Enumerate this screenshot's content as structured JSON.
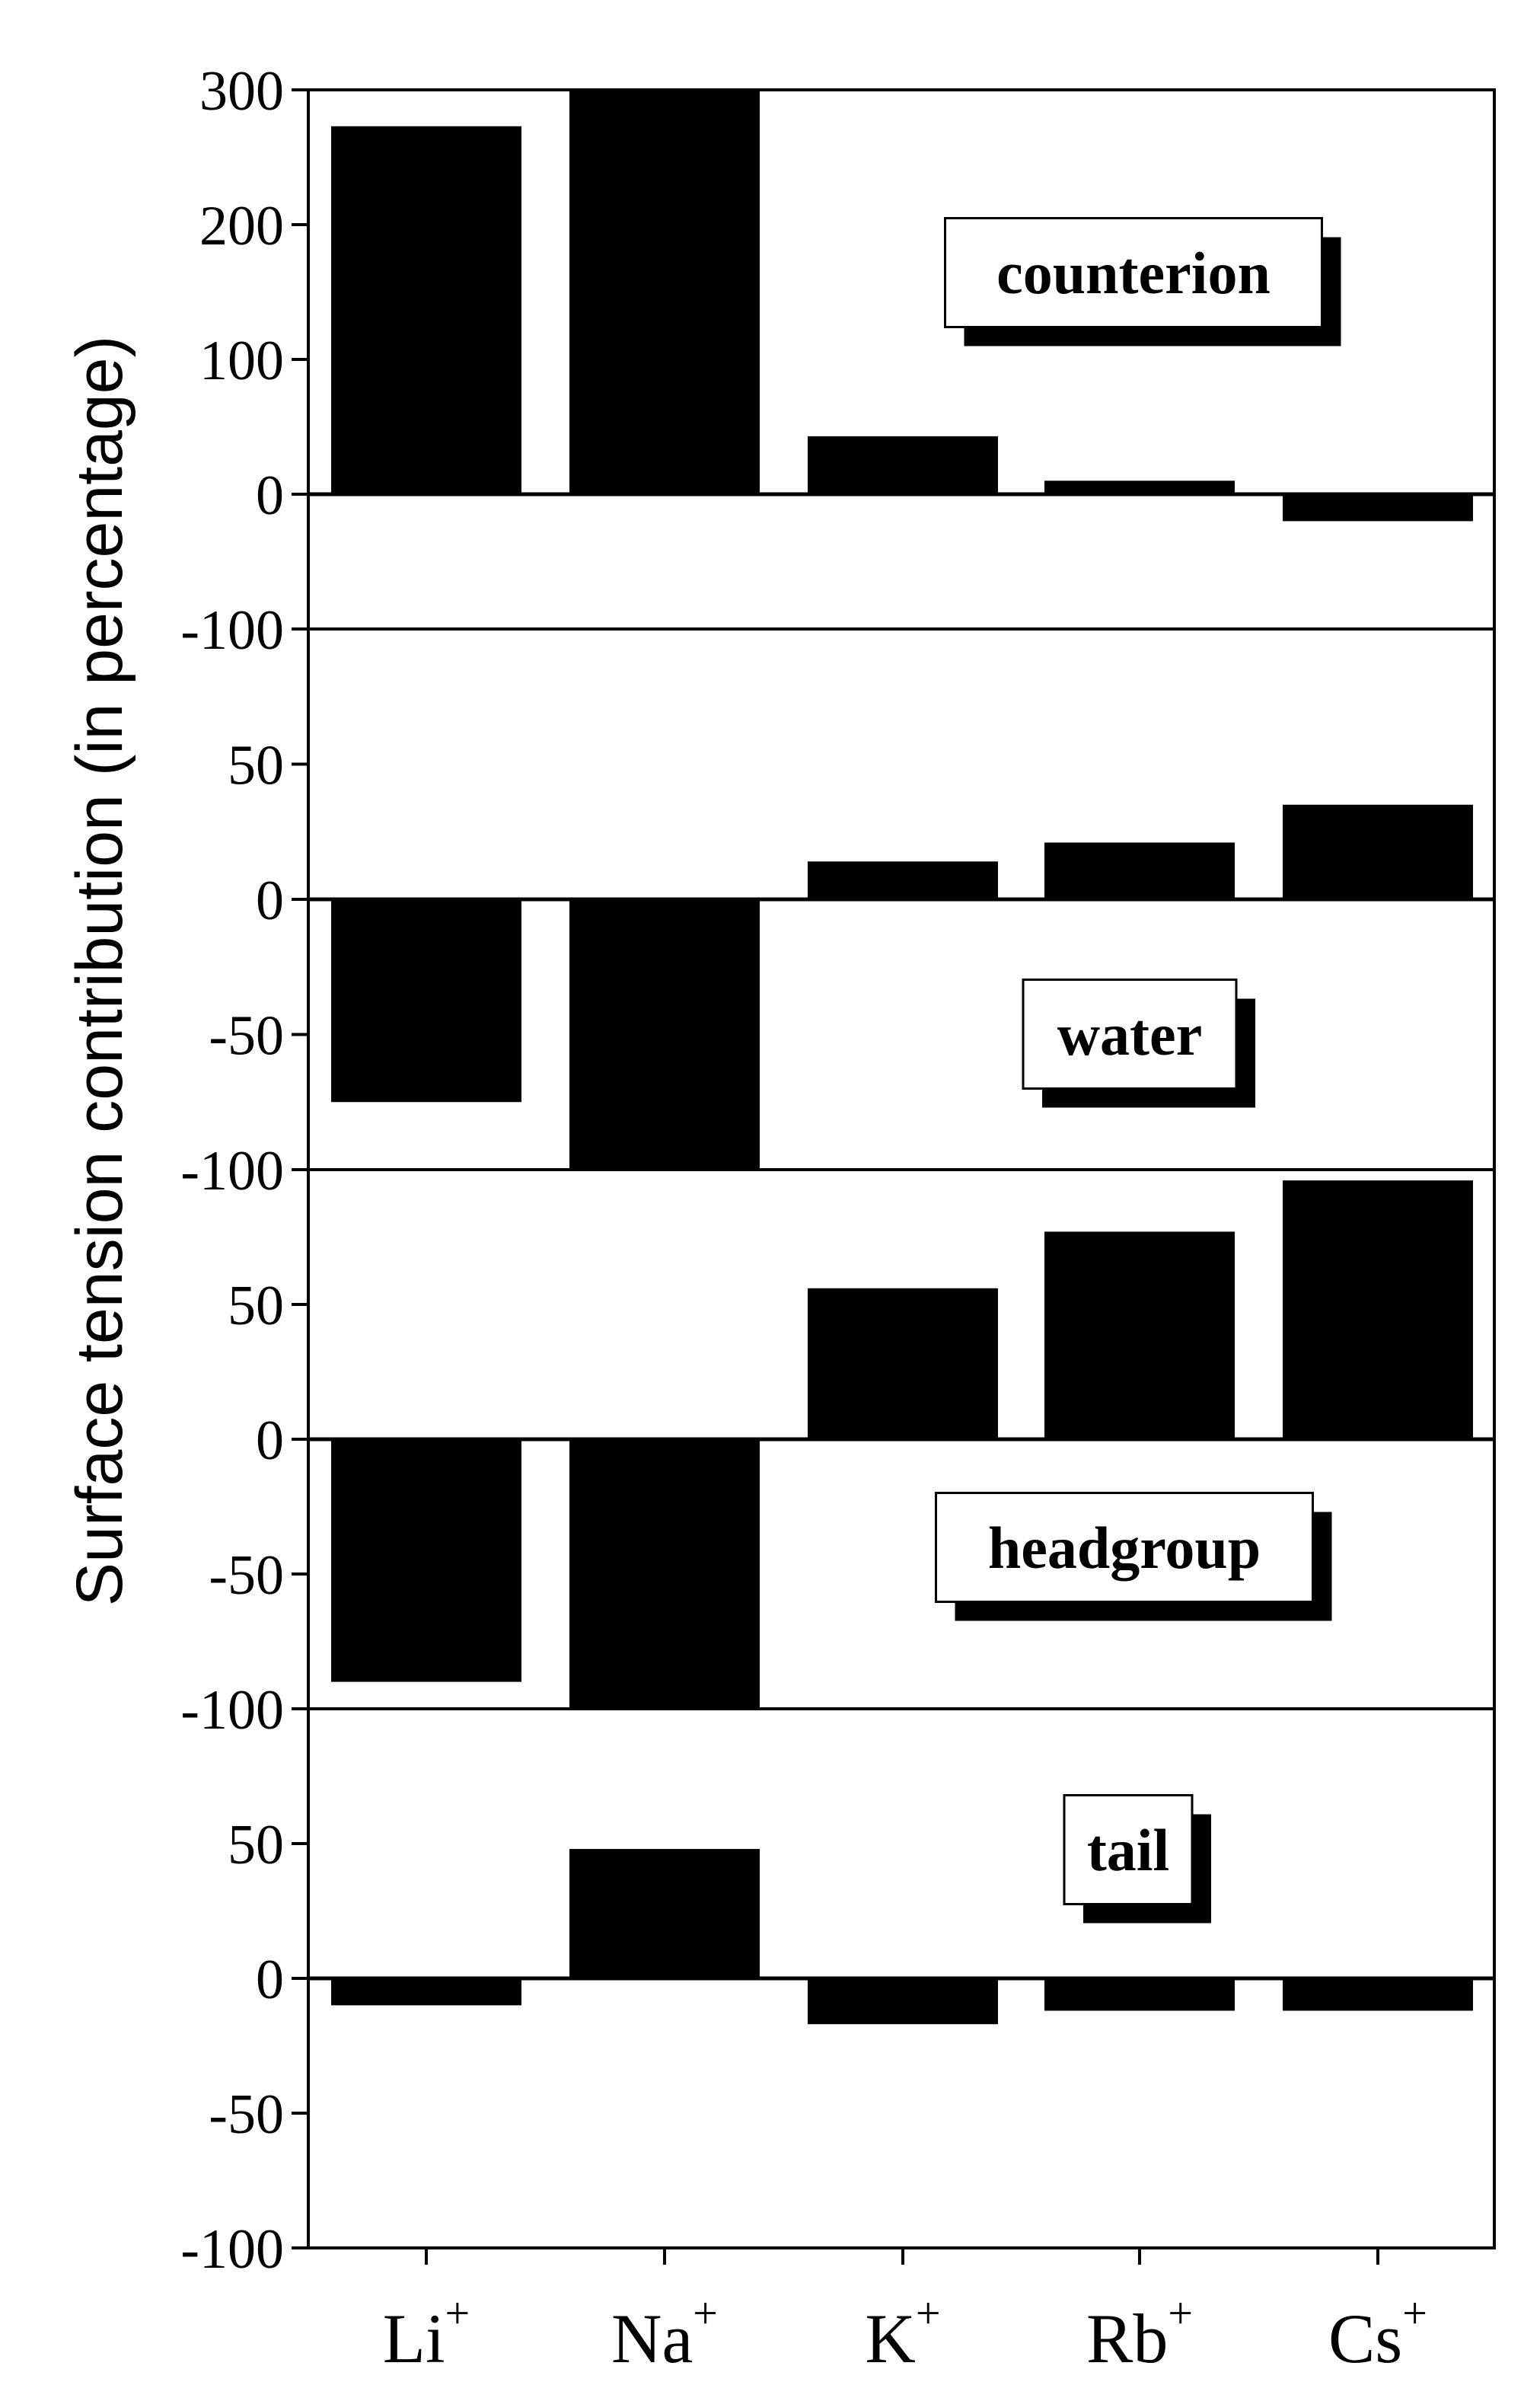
{
  "chart_data": {
    "type": "bar",
    "ylabel": "Surface tension contribution (in percentage)",
    "xlabel": "",
    "categories": [
      "Li",
      "Na",
      "K",
      "Rb",
      "Cs"
    ],
    "category_superscript": "+",
    "bar_color": "#000000",
    "panels": [
      {
        "name": "counterion",
        "ylim": [
          -100,
          300
        ],
        "ticks": [
          "300",
          "200",
          "100",
          "0",
          "-100"
        ],
        "values": [
          273,
          300,
          43,
          10,
          -20
        ]
      },
      {
        "name": "water",
        "ylim": [
          -100,
          100
        ],
        "ticks": [
          "50",
          "0",
          "-50",
          "-100"
        ],
        "values": [
          -75,
          -100,
          14,
          21,
          35
        ]
      },
      {
        "name": "headgroup",
        "ylim": [
          -100,
          100
        ],
        "ticks": [
          "50",
          "0",
          "-50",
          "-100"
        ],
        "values": [
          -90,
          -100,
          56,
          77,
          96
        ]
      },
      {
        "name": "tail",
        "ylim": [
          -100,
          100
        ],
        "ticks": [
          "50",
          "0",
          "-50",
          "-100"
        ],
        "values": [
          -10,
          48,
          -17,
          -12,
          -12
        ]
      }
    ]
  }
}
